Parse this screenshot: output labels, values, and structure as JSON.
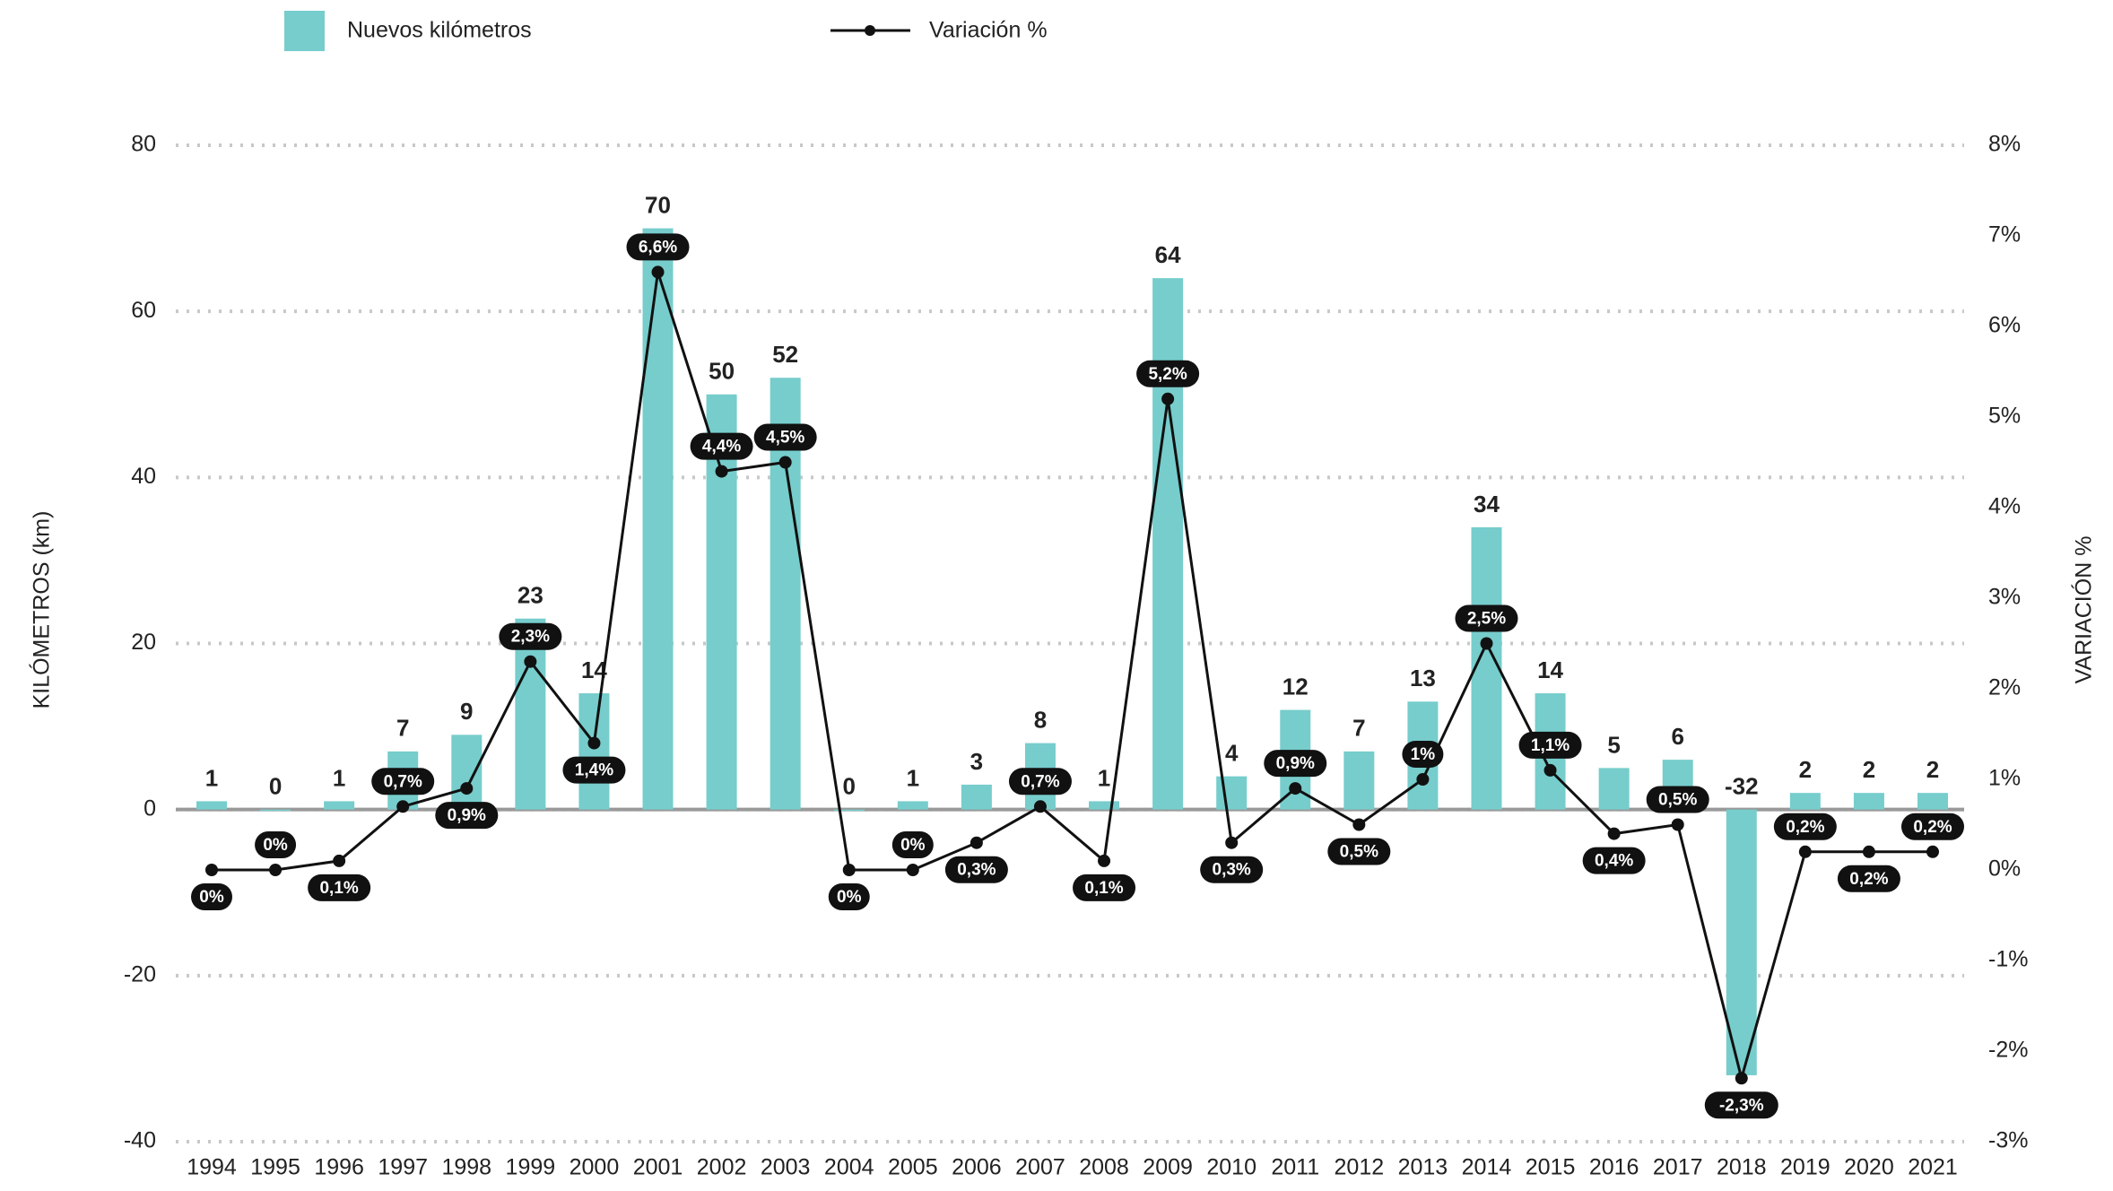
{
  "chart_data": {
    "type": "bar_line",
    "categories": [
      "1994",
      "1995",
      "1996",
      "1997",
      "1998",
      "1999",
      "2000",
      "2001",
      "2002",
      "2003",
      "2004",
      "2005",
      "2006",
      "2007",
      "2008",
      "2009",
      "2010",
      "2011",
      "2012",
      "2013",
      "2014",
      "2015",
      "2016",
      "2017",
      "2018",
      "2019",
      "2020",
      "2021"
    ],
    "series": [
      {
        "name": "Nuevos kilómetros",
        "type": "bar",
        "color": "#76cdcc",
        "values": [
          1,
          0,
          1,
          7,
          9,
          23,
          14,
          70,
          50,
          52,
          0,
          1,
          3,
          8,
          1,
          64,
          4,
          12,
          7,
          13,
          34,
          14,
          5,
          6,
          -32,
          2,
          2,
          2
        ]
      },
      {
        "name": "Variación %",
        "type": "line",
        "axis": "y2",
        "color": "#111111",
        "values": [
          0,
          0,
          0.1,
          0.7,
          0.9,
          2.3,
          1.4,
          6.6,
          4.4,
          4.5,
          0,
          0,
          0.3,
          0.7,
          0.1,
          5.2,
          0.3,
          0.9,
          0.5,
          1,
          2.5,
          1.1,
          0.4,
          0.5,
          -2.3,
          0.2,
          0.2,
          0.2
        ],
        "value_labels": [
          "0%",
          "0%",
          "0,1%",
          "0,7%",
          "0,9%",
          "2,3%",
          "1,4%",
          "6,6%",
          "4,4%",
          "4,5%",
          "0%",
          "0%",
          "0,3%",
          "0,7%",
          "0,1%",
          "5,2%",
          "0,3%",
          "0,9%",
          "0,5%",
          "1%",
          "2,5%",
          "1,1%",
          "0,4%",
          "0,5%",
          "-2,3%",
          "0,2%",
          "0,2%",
          "0,2%"
        ]
      }
    ],
    "ylabel": "KILÓMETROS (km)",
    "y2label": "VARIACIÓN %",
    "ylim": [
      -40,
      80
    ],
    "yticks": [
      -40,
      -20,
      0,
      20,
      40,
      60,
      80
    ],
    "y2lim": [
      -3,
      8
    ],
    "y2ticks": [
      {
        "value": -3,
        "label": "-3%"
      },
      {
        "value": -2,
        "label": "-2%"
      },
      {
        "value": -1,
        "label": "-1%"
      },
      {
        "value": 0,
        "label": "0%"
      },
      {
        "value": 1,
        "label": "1%"
      },
      {
        "value": 2,
        "label": "2%"
      },
      {
        "value": 3,
        "label": "3%"
      },
      {
        "value": 4,
        "label": "4%"
      },
      {
        "value": 5,
        "label": "5%"
      },
      {
        "value": 6,
        "label": "6%"
      },
      {
        "value": 7,
        "label": "7%"
      },
      {
        "value": 8,
        "label": "8%"
      }
    ],
    "grid": true
  }
}
